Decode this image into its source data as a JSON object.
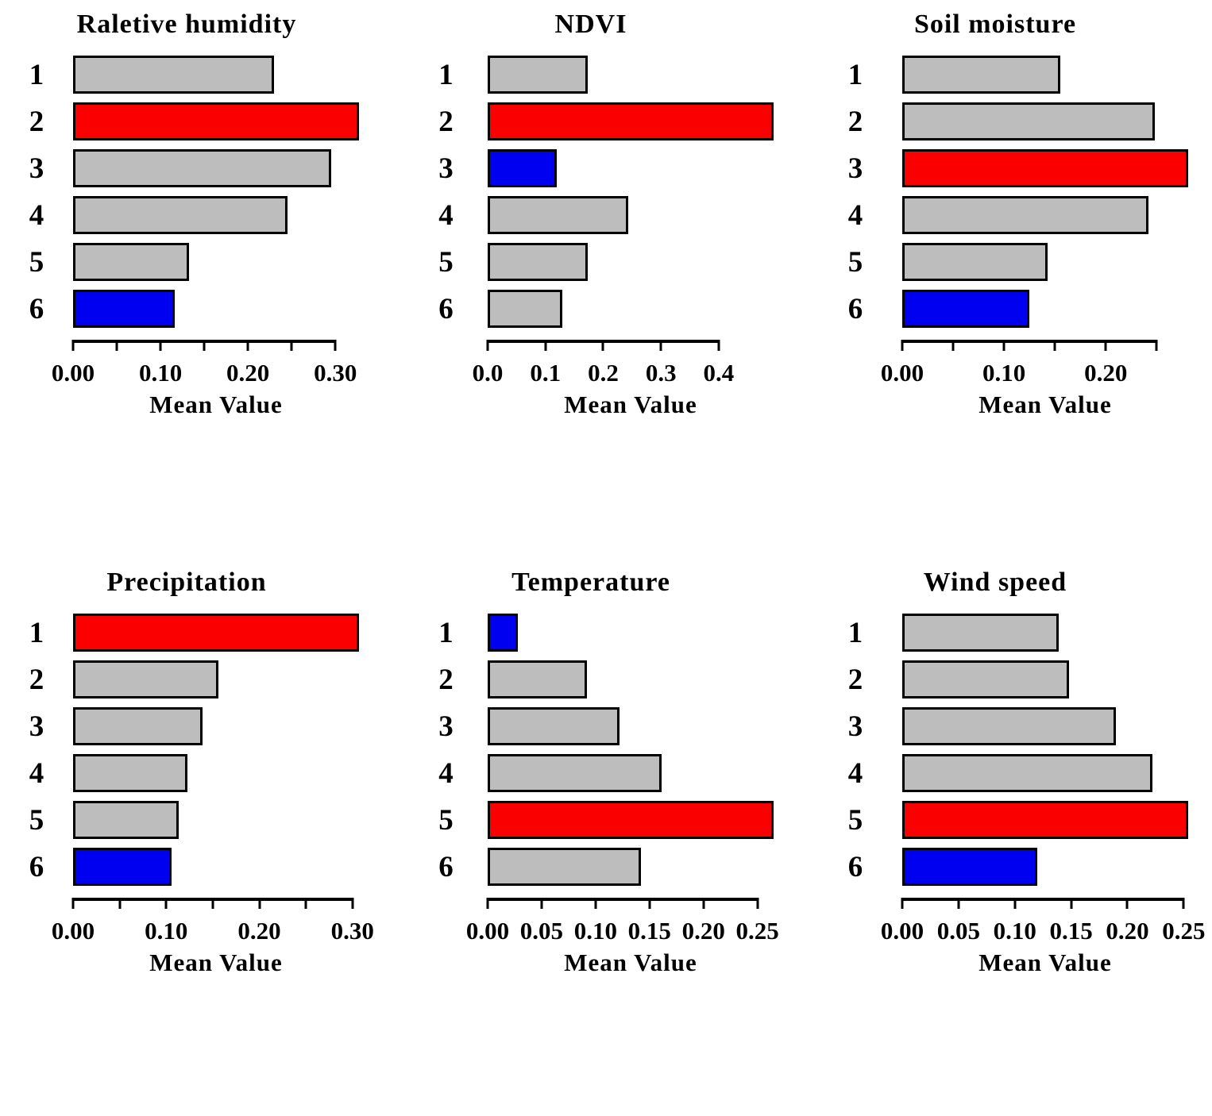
{
  "page": {
    "background": "#ffffff",
    "text_color": "#000000",
    "description_layout": "2x3 grid of horizontal bar panels"
  },
  "chart_data": {
    "type": "bar",
    "orientation": "horizontal",
    "legend": "none",
    "grid": "off",
    "palette": {
      "gray": "#bdbdbd",
      "red": "#fa0000",
      "blue": "#0000f0",
      "bar_border": "#000000",
      "axis": "#000000"
    },
    "highlight_note": "red = largest bar in panel, blue = smallest bar in panel, gray = others",
    "charts": [
      {
        "title": "Raletive humidity",
        "xlabel": "Mean Value",
        "categories": [
          "1",
          "2",
          "3",
          "4",
          "5",
          "6"
        ],
        "values": [
          0.23,
          0.327,
          0.295,
          0.245,
          0.133,
          0.116
        ],
        "colors": [
          "gray",
          "red",
          "gray",
          "gray",
          "gray",
          "blue"
        ],
        "xlim": [
          0,
          0.327
        ],
        "ticks": [
          {
            "v": 0.0,
            "label": "0.00"
          },
          {
            "v": 0.05,
            "label": ""
          },
          {
            "v": 0.1,
            "label": "0.10"
          },
          {
            "v": 0.15,
            "label": ""
          },
          {
            "v": 0.2,
            "label": "0.20"
          },
          {
            "v": 0.25,
            "label": ""
          },
          {
            "v": 0.3,
            "label": "0.30"
          }
        ]
      },
      {
        "title": "NDVI",
        "xlabel": "Mean Value",
        "categories": [
          "1",
          "2",
          "3",
          "4",
          "5",
          "6"
        ],
        "values": [
          0.173,
          0.495,
          0.12,
          0.244,
          0.173,
          0.129
        ],
        "colors": [
          "gray",
          "red",
          "blue",
          "gray",
          "gray",
          "gray"
        ],
        "xlim": [
          0,
          0.495
        ],
        "ticks": [
          {
            "v": 0.0,
            "label": "0.0"
          },
          {
            "v": 0.1,
            "label": "0.1"
          },
          {
            "v": 0.2,
            "label": "0.2"
          },
          {
            "v": 0.3,
            "label": "0.3"
          },
          {
            "v": 0.4,
            "label": "0.4"
          }
        ]
      },
      {
        "title": "Soil moisture",
        "xlabel": "Mean Value",
        "categories": [
          "1",
          "2",
          "3",
          "4",
          "5",
          "6"
        ],
        "values": [
          0.155,
          0.248,
          0.281,
          0.242,
          0.143,
          0.125
        ],
        "colors": [
          "gray",
          "gray",
          "red",
          "gray",
          "gray",
          "blue"
        ],
        "xlim": [
          0,
          0.281
        ],
        "ticks": [
          {
            "v": 0.0,
            "label": "0.00"
          },
          {
            "v": 0.05,
            "label": ""
          },
          {
            "v": 0.1,
            "label": "0.10"
          },
          {
            "v": 0.15,
            "label": ""
          },
          {
            "v": 0.2,
            "label": "0.20"
          },
          {
            "v": 0.25,
            "label": ""
          }
        ]
      },
      {
        "title": "Precipitation",
        "xlabel": "Mean Value",
        "categories": [
          "1",
          "2",
          "3",
          "4",
          "5",
          "6"
        ],
        "values": [
          0.307,
          0.156,
          0.139,
          0.123,
          0.113,
          0.106
        ],
        "colors": [
          "red",
          "gray",
          "gray",
          "gray",
          "gray",
          "blue"
        ],
        "xlim": [
          0,
          0.307
        ],
        "ticks": [
          {
            "v": 0.0,
            "label": "0.00"
          },
          {
            "v": 0.05,
            "label": ""
          },
          {
            "v": 0.1,
            "label": "0.10"
          },
          {
            "v": 0.15,
            "label": ""
          },
          {
            "v": 0.2,
            "label": "0.20"
          },
          {
            "v": 0.25,
            "label": ""
          },
          {
            "v": 0.3,
            "label": "0.30"
          }
        ]
      },
      {
        "title": "Temperature",
        "xlabel": "Mean Value",
        "categories": [
          "1",
          "2",
          "3",
          "4",
          "5",
          "6"
        ],
        "values": [
          0.028,
          0.092,
          0.122,
          0.161,
          0.265,
          0.142
        ],
        "colors": [
          "blue",
          "gray",
          "gray",
          "gray",
          "red",
          "gray"
        ],
        "xlim": [
          0,
          0.265
        ],
        "ticks": [
          {
            "v": 0.0,
            "label": "0.00"
          },
          {
            "v": 0.05,
            "label": "0.05"
          },
          {
            "v": 0.1,
            "label": "0.10"
          },
          {
            "v": 0.15,
            "label": "0.15"
          },
          {
            "v": 0.2,
            "label": "0.20"
          },
          {
            "v": 0.25,
            "label": "0.25"
          }
        ]
      },
      {
        "title": "Wind speed",
        "xlabel": "Mean Value",
        "categories": [
          "1",
          "2",
          "3",
          "4",
          "5",
          "6"
        ],
        "values": [
          0.139,
          0.148,
          0.19,
          0.222,
          0.254,
          0.12
        ],
        "colors": [
          "gray",
          "gray",
          "gray",
          "gray",
          "red",
          "blue"
        ],
        "xlim": [
          0,
          0.254
        ],
        "ticks": [
          {
            "v": 0.0,
            "label": "0.00"
          },
          {
            "v": 0.05,
            "label": "0.05"
          },
          {
            "v": 0.1,
            "label": "0.10"
          },
          {
            "v": 0.15,
            "label": "0.15"
          },
          {
            "v": 0.2,
            "label": "0.20"
          },
          {
            "v": 0.25,
            "label": "0.25"
          }
        ]
      }
    ]
  }
}
